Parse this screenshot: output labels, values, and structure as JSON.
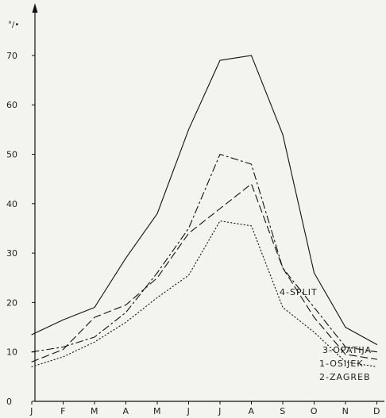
{
  "chart_data": {
    "type": "line",
    "title": "",
    "xlabel": "",
    "ylabel": "°/•",
    "ylim": [
      0,
      75
    ],
    "yticks": [
      "0",
      "10",
      "20",
      "30",
      "40",
      "50",
      "60",
      "70"
    ],
    "categories": [
      "J",
      "F",
      "M",
      "A",
      "M",
      "J",
      "J",
      "A",
      "S",
      "O",
      "N",
      "D"
    ],
    "grid": false,
    "series": [
      {
        "name": "4-SPLIT",
        "dash": "solid",
        "values": [
          13.5,
          16.5,
          19,
          29,
          38,
          55,
          69,
          70,
          54,
          26,
          15,
          11.5
        ]
      },
      {
        "name": "3-OPATIJA",
        "dash": "dash-dot",
        "values": [
          10,
          11,
          13,
          18,
          26,
          35,
          50,
          48,
          27,
          19,
          11,
          10
        ]
      },
      {
        "name": "1-OSIJEK",
        "dash": "dashed",
        "values": [
          8,
          10.5,
          17,
          19.5,
          25,
          34,
          39,
          44,
          27,
          17,
          9.5,
          8.5
        ]
      },
      {
        "name": "2-ZAGREB",
        "dash": "dotted",
        "values": [
          7,
          9,
          12,
          16,
          21,
          25.5,
          36.5,
          35.5,
          19,
          14,
          8,
          7
        ]
      }
    ]
  }
}
